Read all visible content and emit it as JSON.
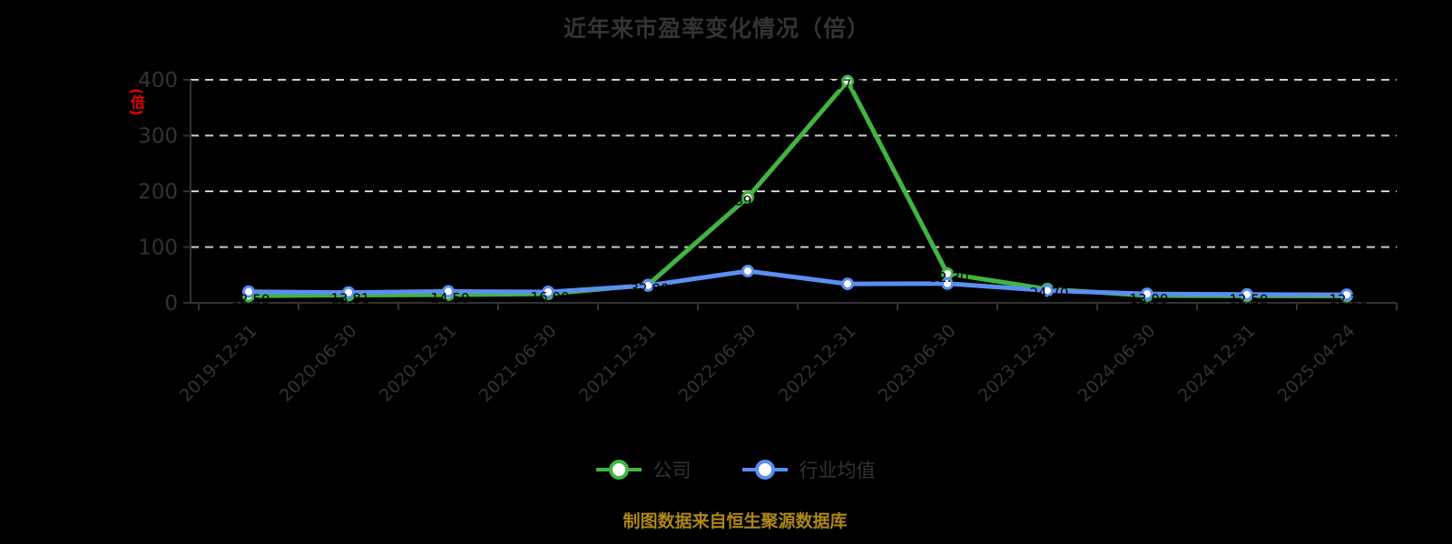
{
  "title": "近年来市盈率变化情况（倍）",
  "y_axis": {
    "unit_label": "(倍)",
    "unit_color": "#e60000",
    "ticks": [
      0,
      100,
      200,
      300,
      400
    ]
  },
  "legend": {
    "items": [
      {
        "label": "公司",
        "color": "#41b541"
      },
      {
        "label": "行业均值",
        "color": "#5b8ff0"
      }
    ]
  },
  "footer": {
    "text": "制图数据来自恒生聚源数据库",
    "color": "#ad8618"
  },
  "colors": {
    "background": "#000000",
    "text": "#333333",
    "axis": "#333333",
    "grid": "#cccccc",
    "company_green": "#41b541",
    "industry_blue": "#5b8ff0",
    "marker_fill": "#ffffff",
    "point_label": "#000000"
  },
  "chart_data": {
    "type": "line",
    "title": "近年来市盈率变化情况（倍）",
    "xlabel": "",
    "ylabel": "(倍)",
    "ylim": [
      0,
      400
    ],
    "grid": "horizontal dashed",
    "legend_position": "bottom",
    "categories": [
      "2019-12-31",
      "2020-06-30",
      "2020-12-31",
      "2021-06-30",
      "2021-12-31",
      "2022-06-30",
      "2022-12-31",
      "2023-06-30",
      "2023-12-31",
      "2024-06-30",
      "2024-12-31",
      "2025-04-24"
    ],
    "series": [
      {
        "name": "公司",
        "color": "#41b541",
        "values": [
          12.5,
          13.81,
          14.5,
          16.0,
          32.0,
          189.2,
          397.5,
          52.3,
          24.7,
          13.0,
          12.5,
          12.2
        ],
        "point_labels_shown": true,
        "point_label_color": "#000000"
      },
      {
        "name": "行业均值",
        "color": "#5b8ff0",
        "values": [
          20.0,
          18.5,
          20.5,
          19.5,
          31.0,
          57.0,
          34.0,
          34.5,
          22.0,
          16.0,
          15.0,
          14.5
        ],
        "point_labels_shown": false
      }
    ]
  }
}
